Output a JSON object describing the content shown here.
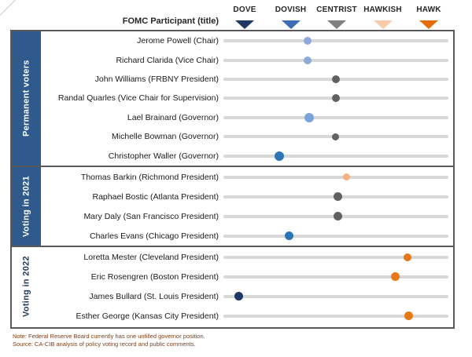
{
  "header": {
    "participant_col_label": "FOMC Participant (title)",
    "scale": [
      {
        "label": "DOVE",
        "color": "#1F3864"
      },
      {
        "label": "DOVISH",
        "color": "#3D6EB5"
      },
      {
        "label": "CENTRIST",
        "color": "#808080"
      },
      {
        "label": "HAWKISH",
        "color": "#F7CBAC"
      },
      {
        "label": "HAWK",
        "color": "#E36C09"
      }
    ]
  },
  "groups": [
    {
      "label": "Permanent voters",
      "sidebar_style": "filled",
      "rows": [
        {
          "name": "Jerome Powell (Chair)",
          "stance": 2.37,
          "dot_color": "#8EA9DB",
          "dot_size": 10
        },
        {
          "name": "Richard Clarida (Vice Chair)",
          "stance": 2.37,
          "dot_color": "#8EA9DB",
          "dot_size": 10
        },
        {
          "name": "John Williams (FRBNY President)",
          "stance": 2.98,
          "dot_color": "#616161",
          "dot_size": 10
        },
        {
          "name": "Randal Quarles (Vice Chair for Supervision)",
          "stance": 2.98,
          "dot_color": "#616161",
          "dot_size": 10
        },
        {
          "name": "Lael Brainard (Governor)",
          "stance": 2.41,
          "dot_color": "#7AA3DC",
          "dot_size": 12
        },
        {
          "name": "Michelle Bowman (Governor)",
          "stance": 2.98,
          "dot_color": "#616161",
          "dot_size": 9
        },
        {
          "name": "Christopher Waller (Governor)",
          "stance": 1.75,
          "dot_color": "#2E75B6",
          "dot_size": 12
        }
      ]
    },
    {
      "label": "Voting in 2021",
      "sidebar_style": "filled",
      "rows": [
        {
          "name": "Thomas Barkin (Richmond President)",
          "stance": 3.22,
          "dot_color": "#F4B183",
          "dot_size": 9
        },
        {
          "name": "Raphael Bostic (Atlanta President)",
          "stance": 3.02,
          "dot_color": "#616161",
          "dot_size": 11
        },
        {
          "name": "Mary Daly (San Francisco President)",
          "stance": 3.02,
          "dot_color": "#616161",
          "dot_size": 11
        },
        {
          "name": "Charles Evans (Chicago President)",
          "stance": 1.97,
          "dot_color": "#2E75B6",
          "dot_size": 11
        }
      ]
    },
    {
      "label": "Voting in 2022",
      "sidebar_style": "plain",
      "rows": [
        {
          "name": "Loretta Mester (Cleveland President)",
          "stance": 4.54,
          "dot_color": "#E67817",
          "dot_size": 10
        },
        {
          "name": "Eric Rosengren (Boston President)",
          "stance": 4.27,
          "dot_color": "#E67817",
          "dot_size": 11
        },
        {
          "name": "James Bullard (St. Louis President)",
          "stance": 0.87,
          "dot_color": "#1F3864",
          "dot_size": 11
        },
        {
          "name": "Esther George (Kansas City President)",
          "stance": 4.56,
          "dot_color": "#E67817",
          "dot_size": 11
        }
      ]
    }
  ],
  "footer": {
    "note": "Note: Federal Reserve Board currently has one unfilled  governor position.",
    "source": "Source: CA-CIB analysis of policy voting record and public comments."
  },
  "colors": {
    "sidebar_fill": "#305A8C",
    "sidebar_text_filled": "#FFFFFF",
    "sidebar_text_plain": "#1F3864",
    "border": "#595959",
    "track": "#D8D8D8"
  },
  "chart_data": {
    "type": "scatter",
    "title": "FOMC Participant (title) dove-hawk positioning",
    "x_axis": {
      "labels": [
        "DOVE",
        "DOVISH",
        "CENTRIST",
        "HAWKISH",
        "HAWK"
      ],
      "values": [
        1,
        2,
        3,
        4,
        5
      ],
      "range": [
        0.5,
        5.5
      ]
    },
    "series": [
      {
        "name": "Permanent voters",
        "points": [
          {
            "label": "Jerome Powell (Chair)",
            "x": 2.37
          },
          {
            "label": "Richard Clarida (Vice Chair)",
            "x": 2.37
          },
          {
            "label": "John Williams (FRBNY President)",
            "x": 2.98
          },
          {
            "label": "Randal Quarles (Vice Chair for Supervision)",
            "x": 2.98
          },
          {
            "label": "Lael Brainard (Governor)",
            "x": 2.41
          },
          {
            "label": "Michelle Bowman (Governor)",
            "x": 2.98
          },
          {
            "label": "Christopher Waller (Governor)",
            "x": 1.75
          }
        ]
      },
      {
        "name": "Voting in 2021",
        "points": [
          {
            "label": "Thomas Barkin (Richmond President)",
            "x": 3.22
          },
          {
            "label": "Raphael Bostic (Atlanta President)",
            "x": 3.02
          },
          {
            "label": "Mary Daly (San Francisco President)",
            "x": 3.02
          },
          {
            "label": "Charles Evans (Chicago President)",
            "x": 1.97
          }
        ]
      },
      {
        "name": "Voting in 2022",
        "points": [
          {
            "label": "Loretta Mester (Cleveland President)",
            "x": 4.54
          },
          {
            "label": "Eric Rosengren (Boston President)",
            "x": 4.27
          },
          {
            "label": "James Bullard (St. Louis President)",
            "x": 0.87
          },
          {
            "label": "Esther George (Kansas City President)",
            "x": 4.56
          }
        ]
      }
    ],
    "legend": "none",
    "grid": "off"
  }
}
